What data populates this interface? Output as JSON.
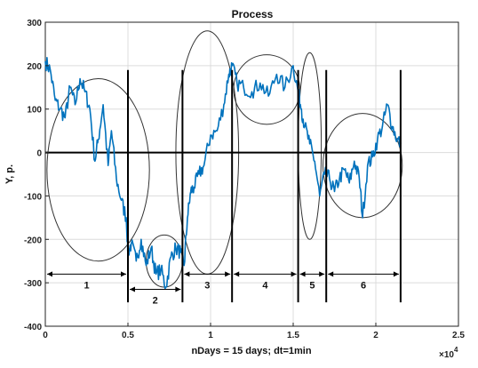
{
  "chart_data": {
    "type": "line",
    "title": "Process",
    "xlabel": "nDays = 15 days;  dt=1min",
    "ylabel": "Y, p.",
    "x_multiplier_label": "×10",
    "x_multiplier_exp": "4",
    "xlim": [
      0,
      2.5
    ],
    "ylim": [
      -400,
      300
    ],
    "xticks": [
      0,
      0.5,
      1,
      1.5,
      2,
      2.5
    ],
    "xtick_labels": [
      "0",
      "0.5",
      "1",
      "1.5",
      "2",
      "2.5"
    ],
    "yticks": [
      -400,
      -300,
      -200,
      -100,
      0,
      100,
      200,
      300
    ],
    "ytick_labels": [
      "-400",
      "-300",
      "-200",
      "-100",
      "0",
      "100",
      "200",
      "300"
    ],
    "grid": true,
    "series": [
      {
        "color": "#0072BD",
        "x": [
          0,
          0.03,
          0.06,
          0.09,
          0.12,
          0.15,
          0.18,
          0.21,
          0.24,
          0.27,
          0.3,
          0.32,
          0.35,
          0.38,
          0.4,
          0.43,
          0.46,
          0.49,
          0.5,
          0.52,
          0.55,
          0.58,
          0.61,
          0.64,
          0.67,
          0.7,
          0.73,
          0.76,
          0.79,
          0.82,
          0.84,
          0.86,
          0.88,
          0.9,
          0.93,
          0.96,
          1.0,
          1.04,
          1.08,
          1.11,
          1.13,
          1.16,
          1.2,
          1.25,
          1.3,
          1.35,
          1.4,
          1.45,
          1.5,
          1.53,
          1.55,
          1.57,
          1.6,
          1.63,
          1.66,
          1.69,
          1.72,
          1.75,
          1.78,
          1.81,
          1.84,
          1.87,
          1.9,
          1.92,
          1.95,
          1.98,
          2.01,
          2.04,
          2.07,
          2.1,
          2.13,
          2.15
        ],
        "y": [
          210,
          190,
          120,
          100,
          80,
          150,
          110,
          170,
          140,
          100,
          -20,
          30,
          110,
          -30,
          50,
          -60,
          -110,
          -150,
          -230,
          -210,
          -250,
          -200,
          -260,
          -220,
          -280,
          -270,
          -310,
          -240,
          -220,
          -230,
          -260,
          -150,
          -90,
          -80,
          -50,
          -30,
          40,
          50,
          110,
          180,
          200,
          160,
          150,
          140,
          160,
          130,
          180,
          150,
          200,
          140,
          100,
          60,
          20,
          -20,
          -100,
          -50,
          -60,
          -90,
          -60,
          -40,
          -70,
          -20,
          -60,
          -150,
          -30,
          -10,
          30,
          60,
          110,
          60,
          30,
          20
        ]
      }
    ],
    "segments": [
      {
        "label": "1",
        "x_start": 0.0,
        "x_end": 0.5
      },
      {
        "label": "2",
        "x_start": 0.5,
        "x_end": 0.83
      },
      {
        "label": "3",
        "x_start": 0.83,
        "x_end": 1.13
      },
      {
        "label": "4",
        "x_start": 1.13,
        "x_end": 1.53
      },
      {
        "label": "5",
        "x_start": 1.53,
        "x_end": 1.7
      },
      {
        "label": "6",
        "x_start": 1.7,
        "x_end": 2.15
      }
    ],
    "highlight_ellipses": [
      {
        "cx": 0.32,
        "cy": -40,
        "rx": 0.31,
        "ry": 210
      },
      {
        "cx": 0.72,
        "cy": -250,
        "rx": 0.11,
        "ry": 60
      },
      {
        "cx": 0.98,
        "cy": 0,
        "rx": 0.19,
        "ry": 280
      },
      {
        "cx": 1.34,
        "cy": 145,
        "rx": 0.2,
        "ry": 80
      },
      {
        "cx": 1.6,
        "cy": 15,
        "rx": 0.07,
        "ry": 215
      },
      {
        "cx": 1.92,
        "cy": -30,
        "rx": 0.24,
        "ry": 120
      }
    ]
  }
}
